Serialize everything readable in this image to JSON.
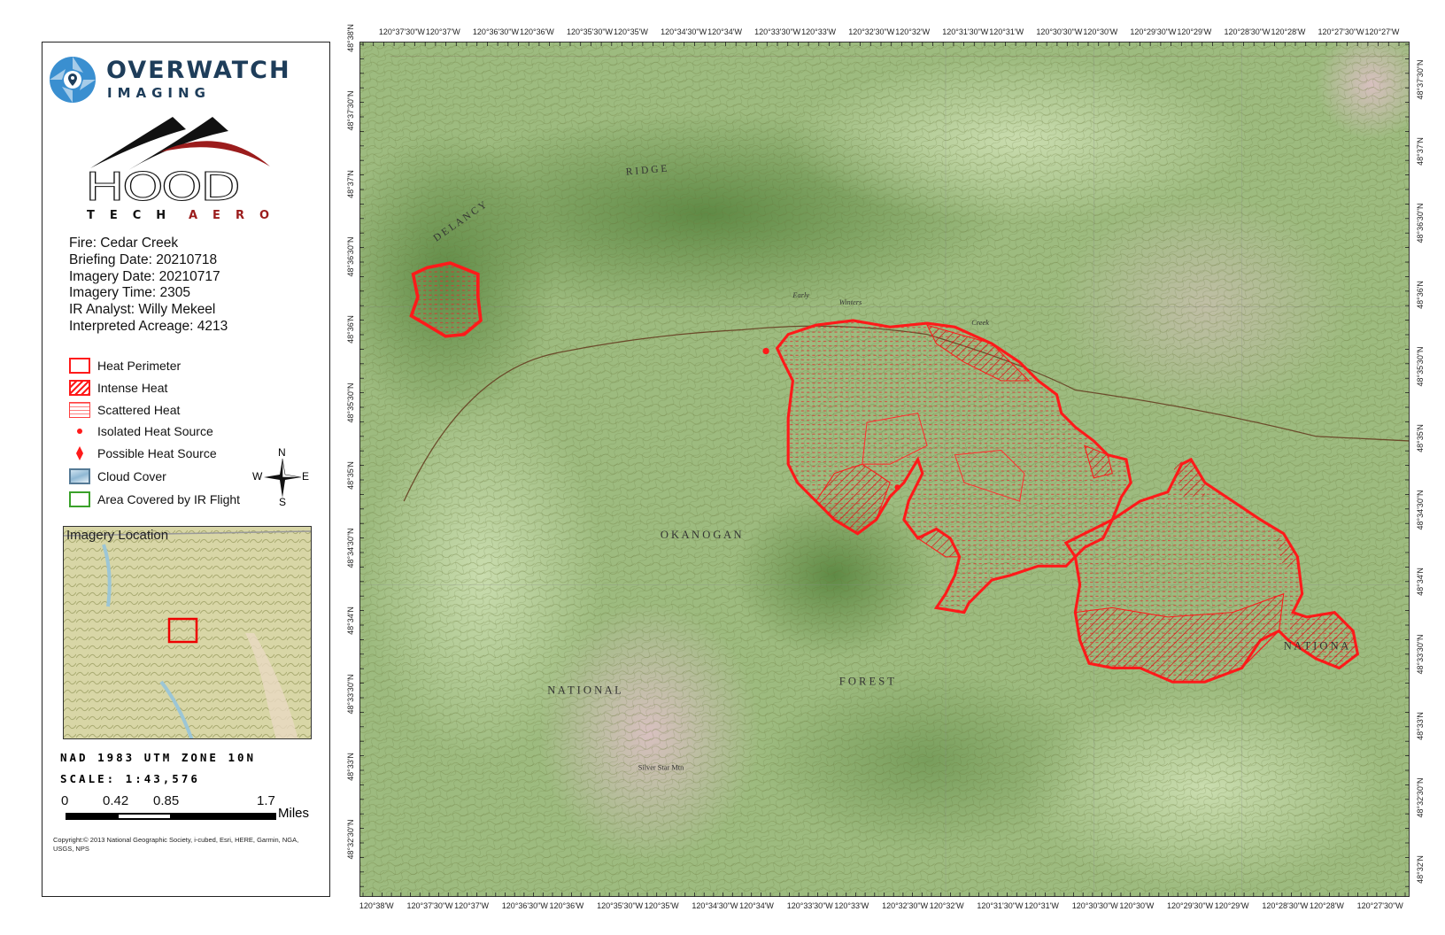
{
  "branding": {
    "overwatch_name": "OVERWATCH",
    "overwatch_sub": "IMAGING",
    "hood_name": "HOOD",
    "hood_tech": "TECH",
    "hood_aero": "AERO",
    "colors": {
      "overwatch": "#1e3d5a",
      "overwatch_icon": "#3a8fd0",
      "hood_red": "#9b1c1c"
    }
  },
  "fire_info": [
    "Fire: Cedar Creek",
    "Briefing Date: 20210718",
    "Imagery Date: 20210717",
    "Imagery Time: 2305",
    "IR Analyst: Willy Mekeel",
    "Interpreted Acreage: 4213"
  ],
  "legend": [
    {
      "label": "Heat Perimeter",
      "icon": "red-outline-square"
    },
    {
      "label": "Intense Heat",
      "icon": "red-hatched-square"
    },
    {
      "label": "Scattered Heat",
      "icon": "red-dotted-square"
    },
    {
      "label": "Isolated Heat Source",
      "icon": "red-dot"
    },
    {
      "label": "Possible Heat Source",
      "icon": "red-diamond"
    },
    {
      "label": "Cloud Cover",
      "icon": "cloud-swatch"
    },
    {
      "label": "Area Covered by IR Flight",
      "icon": "green-outline-square"
    }
  ],
  "compass": {
    "n": "N",
    "s": "S",
    "e": "E",
    "w": "W"
  },
  "inset": {
    "title": "Imagery Location"
  },
  "projection": "NAD 1983 UTM ZONE 10N",
  "scale_text": "SCALE: 1:43,576",
  "scale_bar": {
    "labels": [
      "0",
      "0.42",
      "0.85",
      "1.7"
    ],
    "unit": "Miles"
  },
  "copyright": "Copyright:© 2013 National Geographic Society, i-cubed, Esri, HERE, Garmin, NGA, USGS, NPS",
  "coords": {
    "top": [
      "120°37'30\"W",
      "120°37'W",
      "120°36'30\"W",
      "120°36'W",
      "120°35'30\"W",
      "120°35'W",
      "120°34'30\"W",
      "120°34'W",
      "120°33'30\"W",
      "120°33'W",
      "120°32'30\"W",
      "120°32'W",
      "120°31'30\"W",
      "120°31'W",
      "120°30'30\"W",
      "120°30'W",
      "120°29'30\"W",
      "120°29'W",
      "120°28'30\"W",
      "120°28'W",
      "120°27'30\"W",
      "120°27'W"
    ],
    "bottom": [
      "120°38'W",
      "120°37'30\"W",
      "120°37'W",
      "120°36'30\"W",
      "120°36'W",
      "120°35'30\"W",
      "120°35'W",
      "120°34'30\"W",
      "120°34'W",
      "120°33'30\"W",
      "120°33'W",
      "120°32'30\"W",
      "120°32'W",
      "120°31'30\"W",
      "120°31'W",
      "120°30'30\"W",
      "120°30'W",
      "120°29'30\"W",
      "120°29'W",
      "120°28'30\"W",
      "120°28'W",
      "120°27'30\"W"
    ],
    "left": [
      "48°38'N",
      "48°37'30\"N",
      "48°37'N",
      "48°36'30\"N",
      "48°36'N",
      "48°35'30\"N",
      "48°35'N",
      "48°34'30\"N",
      "48°34'N",
      "48°33'30\"N",
      "48°33'N",
      "48°32'30\"N"
    ],
    "right": [
      "48°37'30\"N",
      "48°37'N",
      "48°36'30\"N",
      "48°36'N",
      "48°35'30\"N",
      "48°35'N",
      "48°34'30\"N",
      "48°34'N",
      "48°33'30\"N",
      "48°33'N",
      "48°32'30\"N",
      "48°32'N"
    ]
  },
  "map_labels": {
    "ridge": "R I D G E",
    "delancy": "D E L A N C Y",
    "okanogan": "O K A N O G A N",
    "national": "N A T I O N A L",
    "forest": "F O R E S T",
    "nationa_east": "N A T I O N A",
    "early": "Early",
    "winters": "Winters",
    "creek": "Creek",
    "silver_star": "Silver Star Mtn"
  },
  "colors": {
    "heat": "#ff1a1a",
    "terrain": "#9dbb7f",
    "contour": "#7a6a3a"
  }
}
